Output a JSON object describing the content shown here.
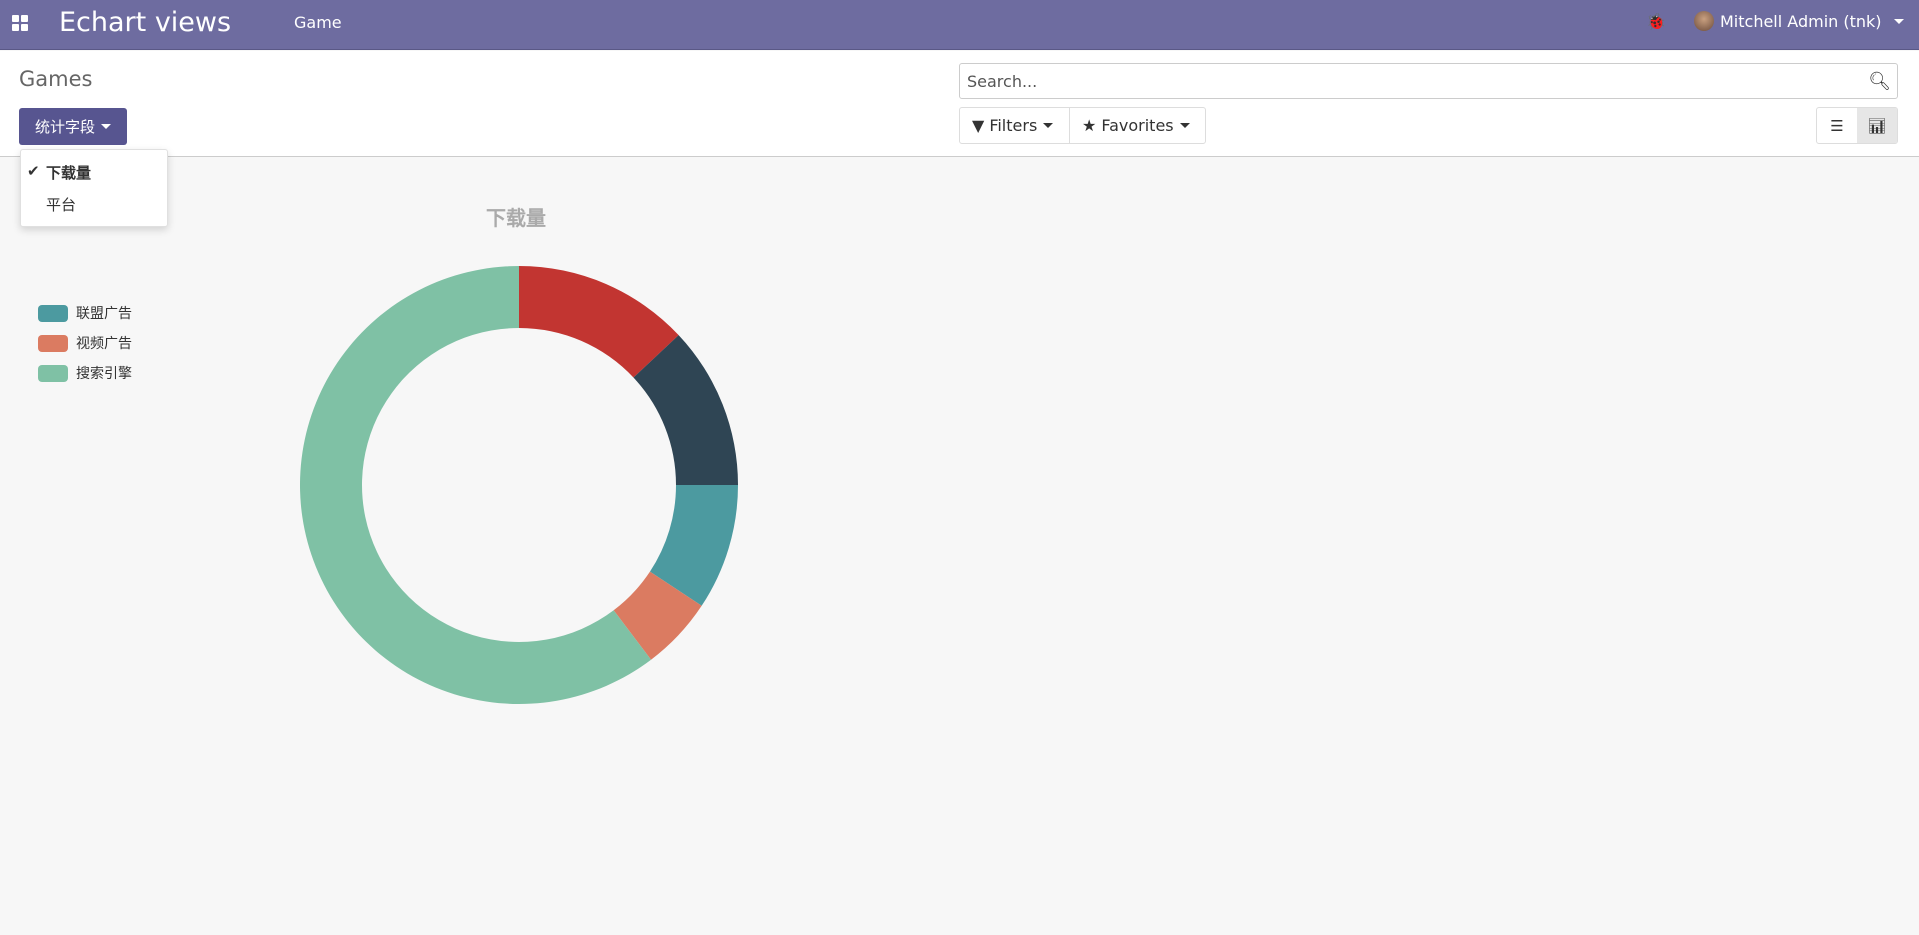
{
  "topbar": {
    "app_title": "Echart views",
    "menu": "Game",
    "user": "Mitchell Admin (tnk)"
  },
  "control": {
    "title": "Games",
    "field_button": "统计字段",
    "search_placeholder": "Search...",
    "filters": "Filters",
    "favorites": "Favorites"
  },
  "dropdown": {
    "items": [
      {
        "label": "下载量",
        "checked": true
      },
      {
        "label": "平台",
        "checked": false
      }
    ]
  },
  "chart_data": {
    "type": "pie",
    "donut": true,
    "title": "下载量",
    "legend_position": "top-left",
    "series": [
      {
        "name": "",
        "value": 13,
        "color": "#c23531"
      },
      {
        "name": "",
        "value": 12,
        "color": "#2f4554"
      },
      {
        "name": "联盟广告",
        "value": 9.3,
        "color": "#4c9aa0"
      },
      {
        "name": "视频广告",
        "value": 5.4,
        "color": "#db7b61"
      },
      {
        "name": "搜索引擎",
        "value": 60.3,
        "color": "#7fc1a5"
      }
    ]
  }
}
